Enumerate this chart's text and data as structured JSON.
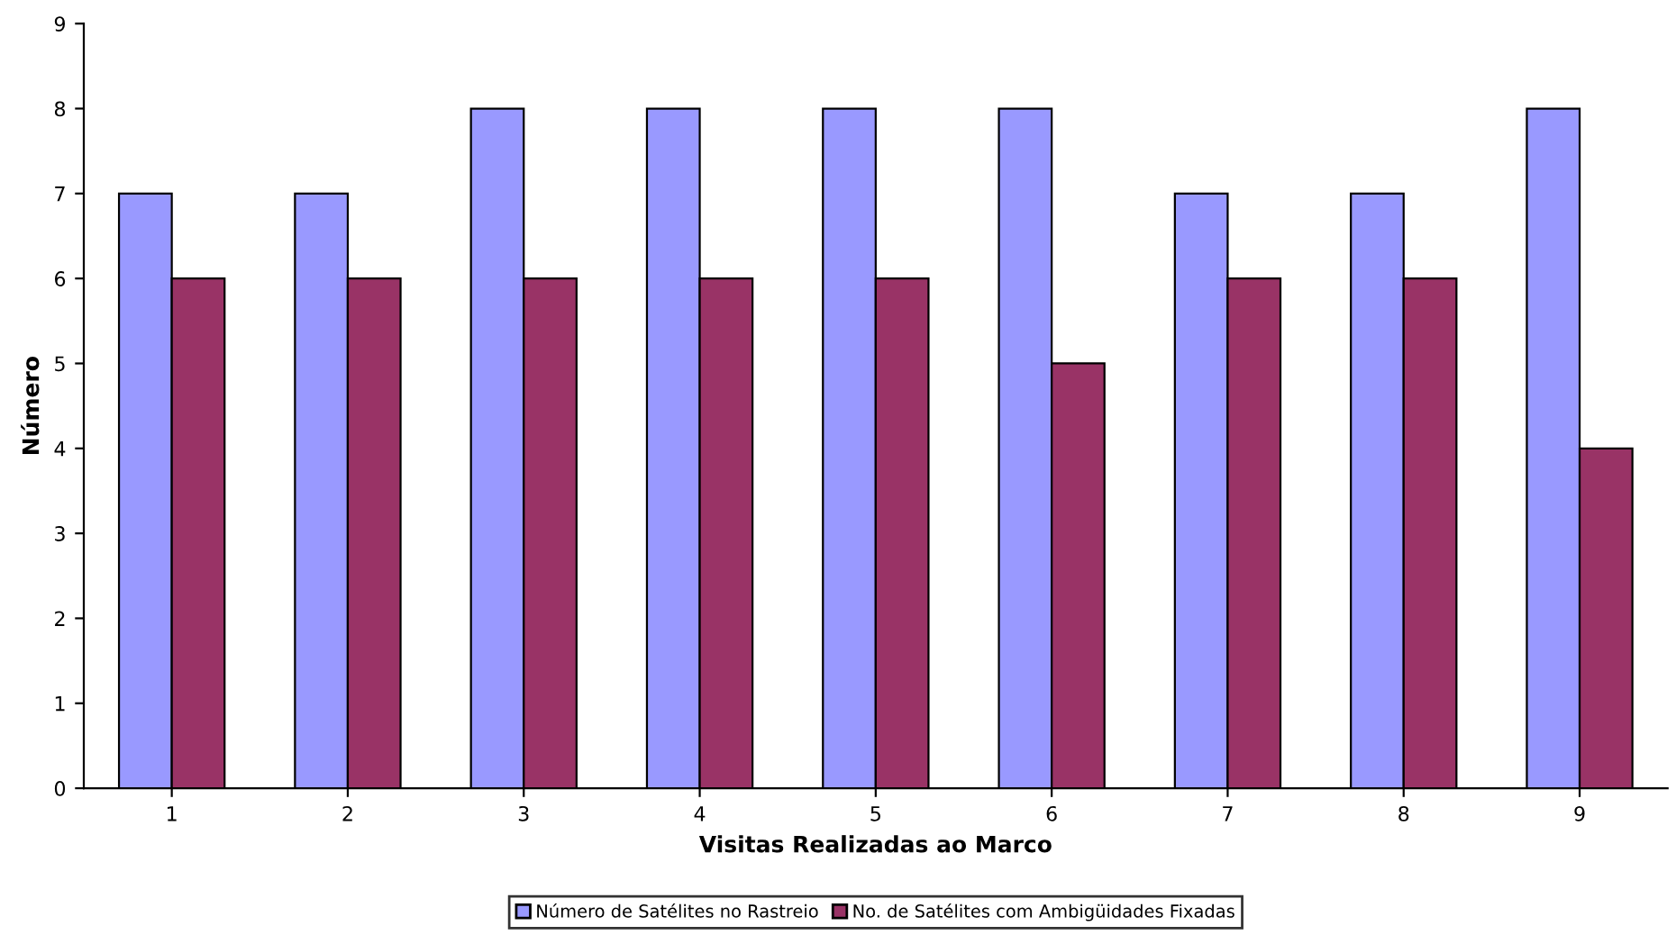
{
  "chart_data": {
    "type": "bar",
    "xlabel": "Visitas Realizadas ao Marco",
    "ylabel": "Número",
    "categories": [
      "1",
      "2",
      "3",
      "4",
      "5",
      "6",
      "7",
      "8",
      "9"
    ],
    "series": [
      {
        "name": "Número de Satélites no Rastreio",
        "color": "#9999ff",
        "values": [
          7,
          7,
          8,
          8,
          8,
          8,
          7,
          7,
          8
        ]
      },
      {
        "name": "No. de Satélites com Ambigüidades Fixadas",
        "color": "#993366",
        "values": [
          6,
          6,
          6,
          6,
          6,
          5,
          6,
          6,
          4
        ]
      }
    ],
    "ylim": [
      0,
      9
    ],
    "yticks": [
      0,
      1,
      2,
      3,
      4,
      5,
      6,
      7,
      8,
      9
    ],
    "grid": false,
    "legend": "bottom"
  }
}
